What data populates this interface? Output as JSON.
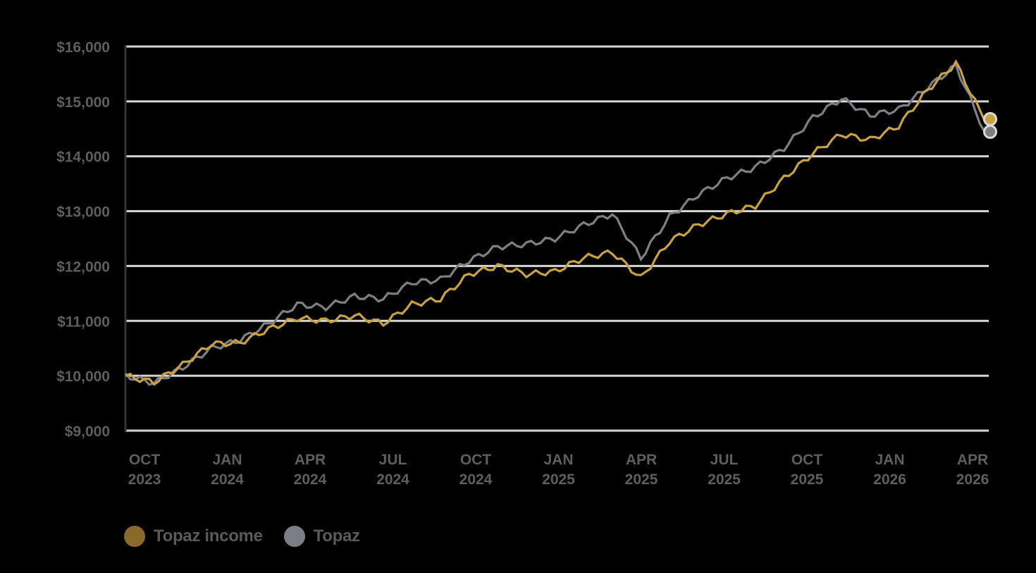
{
  "chart_data": {
    "type": "line",
    "title": "",
    "xlabel": "",
    "ylabel": "",
    "ylim": [
      9000,
      16000
    ],
    "yticks": [
      "$9,000",
      "$10,000",
      "$11,000",
      "$12,000",
      "$13,000",
      "$14,000",
      "$15,000",
      "$16,000"
    ],
    "ytick_values": [
      9000,
      10000,
      11000,
      12000,
      13000,
      14000,
      15000,
      16000
    ],
    "xticks": [
      {
        "month": "OCT",
        "year": "2023"
      },
      {
        "month": "JAN",
        "year": "2024"
      },
      {
        "month": "APR",
        "year": "2024"
      },
      {
        "month": "JUL",
        "year": "2024"
      },
      {
        "month": "OCT",
        "year": "2024"
      },
      {
        "month": "JAN",
        "year": "2025"
      },
      {
        "month": "APR",
        "year": "2025"
      },
      {
        "month": "JUL",
        "year": "2025"
      },
      {
        "month": "OCT",
        "year": "2025"
      },
      {
        "month": "JAN",
        "year": "2026"
      },
      {
        "month": "APR",
        "year": "2026"
      }
    ],
    "grid": true,
    "legend_position": "bottom-left",
    "x": [
      "Oct 2023",
      "Nov 2023",
      "Dec 2023",
      "Jan 2024",
      "Feb 2024",
      "Mar 2024",
      "Apr 2024",
      "May 2024",
      "Jun 2024",
      "Jul 2024",
      "Aug 2024",
      "Sep 2024",
      "Oct 2024",
      "Nov 2024",
      "Dec 2024",
      "Jan 2025",
      "Feb 2025",
      "Mar 2025",
      "Apr 2025",
      "May 2025",
      "Jun 2025",
      "Jul 2025",
      "Aug 2025",
      "Sep 2025",
      "Oct 2025",
      "Nov 2025",
      "Dec 2025",
      "Jan 2026",
      "Feb 2026",
      "Mar 2026",
      "Apr 2026"
    ],
    "series": [
      {
        "name": "Topaz income",
        "color": "#c9a240",
        "values": [
          10000,
          9880,
          10200,
          10580,
          10600,
          10850,
          11050,
          11000,
          11100,
          10950,
          11300,
          11400,
          11850,
          12000,
          11850,
          11900,
          12150,
          12250,
          11780,
          12450,
          12750,
          12950,
          13100,
          13600,
          14050,
          14400,
          14300,
          14550,
          15200,
          15700,
          14650
        ]
      },
      {
        "name": "Topaz",
        "color": "#7d7f84",
        "values": [
          10000,
          9870,
          10150,
          10500,
          10650,
          10950,
          11300,
          11250,
          11450,
          11400,
          11700,
          11750,
          12100,
          12350,
          12400,
          12500,
          12750,
          12950,
          12150,
          12900,
          13300,
          13600,
          13800,
          14150,
          14700,
          15050,
          14750,
          14850,
          15250,
          15650,
          14450
        ]
      }
    ],
    "end_markers": [
      {
        "series": "Topaz income",
        "value": 14650
      },
      {
        "series": "Topaz",
        "value": 14450
      }
    ]
  },
  "legend": {
    "items": [
      {
        "label": "Topaz income",
        "color": "#8a6a2a"
      },
      {
        "label": "Topaz",
        "color": "#7b7e84"
      }
    ]
  }
}
